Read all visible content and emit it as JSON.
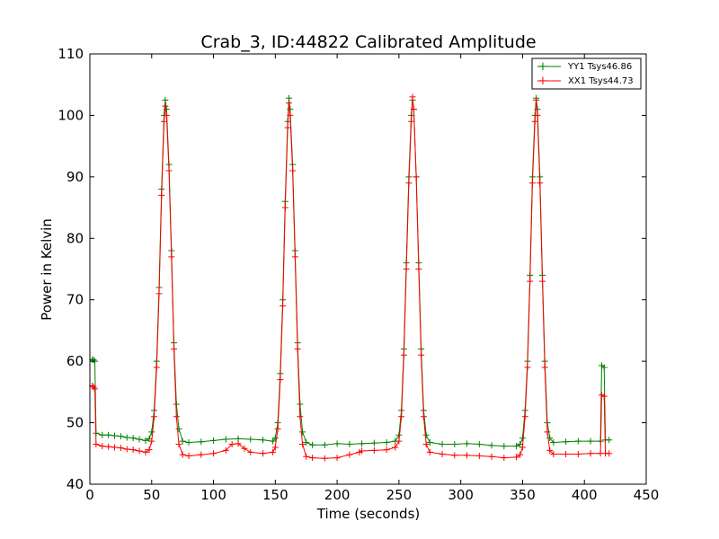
{
  "chart_data": {
    "type": "line",
    "title": "Crab_3, ID:44822 Calibrated Amplitude",
    "xlabel": "Time (seconds)",
    "ylabel": "Power in Kelvin",
    "xlim": [
      0,
      450
    ],
    "ylim": [
      40,
      110
    ],
    "xticks": [
      0,
      50,
      100,
      150,
      200,
      250,
      300,
      350,
      400,
      450
    ],
    "yticks": [
      40,
      50,
      60,
      70,
      80,
      90,
      100,
      110
    ],
    "grid": false,
    "legend_position": "top-right",
    "marker": "+",
    "series": [
      {
        "name": "YY1 Tsys46.86",
        "color": "#008000",
        "points": [
          [
            2,
            60.3
          ],
          [
            3,
            60.2
          ],
          [
            4,
            60.0
          ],
          [
            5,
            48.3
          ],
          [
            10,
            48.0
          ],
          [
            15,
            48.0
          ],
          [
            20,
            47.9
          ],
          [
            25,
            47.8
          ],
          [
            30,
            47.6
          ],
          [
            35,
            47.5
          ],
          [
            40,
            47.3
          ],
          [
            45,
            47.1
          ],
          [
            48,
            47.4
          ],
          [
            50,
            48.5
          ],
          [
            52,
            52
          ],
          [
            54,
            60
          ],
          [
            56,
            72
          ],
          [
            58,
            88
          ],
          [
            60,
            100
          ],
          [
            61,
            102.5
          ],
          [
            62,
            101
          ],
          [
            64,
            92
          ],
          [
            66,
            78
          ],
          [
            68,
            63
          ],
          [
            70,
            53
          ],
          [
            72,
            49
          ],
          [
            75,
            47.0
          ],
          [
            80,
            46.8
          ],
          [
            90,
            46.9
          ],
          [
            100,
            47.1
          ],
          [
            110,
            47.3
          ],
          [
            120,
            47.4
          ],
          [
            130,
            47.3
          ],
          [
            140,
            47.2
          ],
          [
            148,
            47.0
          ],
          [
            150,
            47.5
          ],
          [
            152,
            50
          ],
          [
            154,
            58
          ],
          [
            156,
            70
          ],
          [
            158,
            86
          ],
          [
            160,
            99
          ],
          [
            161,
            102.8
          ],
          [
            162,
            101
          ],
          [
            164,
            92
          ],
          [
            166,
            78
          ],
          [
            168,
            63
          ],
          [
            170,
            53
          ],
          [
            172,
            48.5
          ],
          [
            175,
            46.8
          ],
          [
            180,
            46.4
          ],
          [
            190,
            46.4
          ],
          [
            200,
            46.6
          ],
          [
            210,
            46.5
          ],
          [
            220,
            46.6
          ],
          [
            230,
            46.7
          ],
          [
            240,
            46.8
          ],
          [
            247,
            47.0
          ],
          [
            250,
            48
          ],
          [
            252,
            52
          ],
          [
            254,
            62
          ],
          [
            256,
            76
          ],
          [
            258,
            90
          ],
          [
            260,
            100
          ],
          [
            261,
            102.5
          ],
          [
            262,
            101
          ],
          [
            264,
            90
          ],
          [
            266,
            76
          ],
          [
            268,
            62
          ],
          [
            270,
            52
          ],
          [
            272,
            48
          ],
          [
            275,
            46.8
          ],
          [
            285,
            46.5
          ],
          [
            295,
            46.5
          ],
          [
            305,
            46.6
          ],
          [
            315,
            46.5
          ],
          [
            325,
            46.3
          ],
          [
            335,
            46.2
          ],
          [
            345,
            46.2
          ],
          [
            348,
            46.5
          ],
          [
            350,
            47.5
          ],
          [
            352,
            52
          ],
          [
            354,
            60
          ],
          [
            356,
            74
          ],
          [
            358,
            90
          ],
          [
            360,
            100
          ],
          [
            361,
            102.8
          ],
          [
            362,
            101
          ],
          [
            364,
            90
          ],
          [
            366,
            74
          ],
          [
            368,
            60
          ],
          [
            370,
            50
          ],
          [
            372,
            47.5
          ],
          [
            375,
            46.8
          ],
          [
            385,
            46.9
          ],
          [
            395,
            47.0
          ],
          [
            405,
            47.0
          ],
          [
            413,
            47.0
          ],
          [
            414,
            59.3
          ],
          [
            416,
            59.0
          ],
          [
            417,
            47.2
          ],
          [
            420,
            47.2
          ]
        ]
      },
      {
        "name": "XX1 Tsys44.73",
        "color": "#ff0000",
        "points": [
          [
            2,
            56.0
          ],
          [
            3,
            55.8
          ],
          [
            4,
            55.5
          ],
          [
            5,
            46.5
          ],
          [
            10,
            46.2
          ],
          [
            15,
            46.1
          ],
          [
            20,
            46.0
          ],
          [
            25,
            45.9
          ],
          [
            30,
            45.7
          ],
          [
            35,
            45.6
          ],
          [
            40,
            45.4
          ],
          [
            45,
            45.2
          ],
          [
            48,
            45.6
          ],
          [
            50,
            47
          ],
          [
            52,
            51
          ],
          [
            54,
            59
          ],
          [
            56,
            71
          ],
          [
            58,
            87
          ],
          [
            60,
            99
          ],
          [
            61,
            101.5
          ],
          [
            62,
            100
          ],
          [
            64,
            91
          ],
          [
            66,
            77
          ],
          [
            68,
            62
          ],
          [
            70,
            51
          ],
          [
            72,
            46.5
          ],
          [
            75,
            44.8
          ],
          [
            80,
            44.6
          ],
          [
            90,
            44.8
          ],
          [
            100,
            45.0
          ],
          [
            110,
            45.5
          ],
          [
            115,
            46.5
          ],
          [
            120,
            46.6
          ],
          [
            125,
            45.8
          ],
          [
            130,
            45.2
          ],
          [
            140,
            45.0
          ],
          [
            148,
            45.2
          ],
          [
            150,
            46
          ],
          [
            152,
            49
          ],
          [
            154,
            57
          ],
          [
            156,
            69
          ],
          [
            158,
            85
          ],
          [
            160,
            98
          ],
          [
            161,
            102.0
          ],
          [
            162,
            100
          ],
          [
            164,
            91
          ],
          [
            166,
            77
          ],
          [
            168,
            62
          ],
          [
            170,
            51
          ],
          [
            172,
            46.5
          ],
          [
            175,
            44.5
          ],
          [
            180,
            44.3
          ],
          [
            190,
            44.2
          ],
          [
            200,
            44.3
          ],
          [
            210,
            44.8
          ],
          [
            218,
            45.2
          ],
          [
            220,
            45.4
          ],
          [
            230,
            45.5
          ],
          [
            240,
            45.6
          ],
          [
            247,
            46
          ],
          [
            250,
            47
          ],
          [
            252,
            51
          ],
          [
            254,
            61
          ],
          [
            256,
            75
          ],
          [
            258,
            89
          ],
          [
            260,
            99
          ],
          [
            261,
            103
          ],
          [
            262,
            101
          ],
          [
            264,
            90
          ],
          [
            266,
            75
          ],
          [
            268,
            61
          ],
          [
            270,
            51
          ],
          [
            272,
            46.5
          ],
          [
            275,
            45.2
          ],
          [
            285,
            44.9
          ],
          [
            295,
            44.7
          ],
          [
            305,
            44.7
          ],
          [
            315,
            44.6
          ],
          [
            325,
            44.5
          ],
          [
            335,
            44.3
          ],
          [
            345,
            44.4
          ],
          [
            348,
            44.8
          ],
          [
            350,
            46
          ],
          [
            352,
            51
          ],
          [
            354,
            59
          ],
          [
            356,
            73
          ],
          [
            358,
            89
          ],
          [
            360,
            99
          ],
          [
            361,
            102.5
          ],
          [
            362,
            100
          ],
          [
            364,
            89
          ],
          [
            366,
            73
          ],
          [
            368,
            59
          ],
          [
            370,
            48.5
          ],
          [
            372,
            45.5
          ],
          [
            375,
            44.9
          ],
          [
            385,
            44.9
          ],
          [
            395,
            44.9
          ],
          [
            405,
            45.0
          ],
          [
            413,
            45.0
          ],
          [
            414,
            54.5
          ],
          [
            416,
            54.3
          ],
          [
            417,
            45.0
          ],
          [
            420,
            45.0
          ]
        ]
      }
    ]
  }
}
